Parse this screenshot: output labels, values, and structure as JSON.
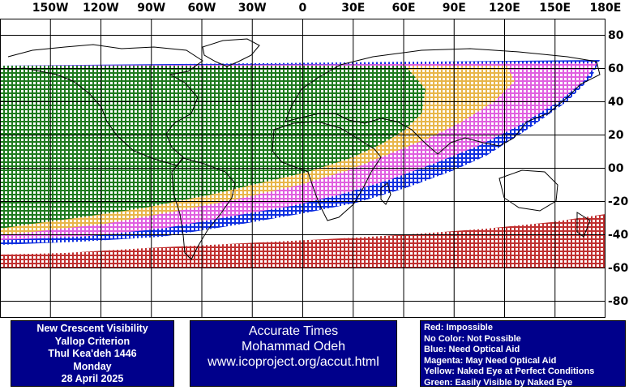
{
  "map": {
    "lon_labels": [
      "150W",
      "120W",
      "90W",
      "60W",
      "30W",
      "0",
      "30E",
      "60E",
      "90E",
      "120E",
      "150E",
      "180E"
    ],
    "lon_values": [
      -150,
      -120,
      -90,
      -60,
      -30,
      0,
      30,
      60,
      90,
      120,
      150,
      180
    ],
    "lat_labels": [
      "80",
      "60",
      "40",
      "20",
      "00",
      "-20",
      "-40",
      "-60",
      "-80"
    ],
    "lat_values": [
      80,
      60,
      40,
      20,
      0,
      -20,
      -40,
      -60,
      -80
    ],
    "colors": {
      "green": "#1e7a1e",
      "yellow": "#e8b64a",
      "magenta": "#e060e0",
      "blue": "#1030e0",
      "red": "#c03030",
      "grid": "#000000",
      "coast": "#000000"
    }
  },
  "info": {
    "title": "New Crescent Visibility",
    "criterion": "Yallop Criterion",
    "month": "Thul Kea'deh 1446",
    "weekday": "Monday",
    "date": "28 April 2025"
  },
  "credits": {
    "line1": "Accurate Times",
    "line2": "Mohammad Odeh",
    "line3": "www.icoproject.org/accut.html"
  },
  "legend": {
    "red": "Red: Impossible",
    "none": "No Color: Not Possible",
    "blue": "Blue: Need Optical Aid",
    "magenta": "Magenta: May Need Optical Aid",
    "yellow": "Yellow: Naked Eye at Perfect Conditions",
    "green": "Green: Easily Visible by Naked Eye"
  }
}
